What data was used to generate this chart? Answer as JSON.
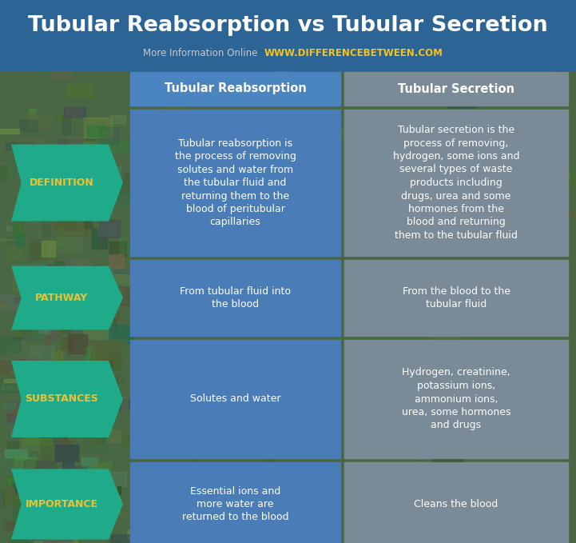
{
  "title": "Tubular Reabsorption vs Tubular Secretion",
  "subtitle_plain": "More Information Online",
  "subtitle_url": "WWW.DIFFERENCEBETWEEN.COM",
  "col1_header": "Tubular Reabsorption",
  "col2_header": "Tubular Secretion",
  "rows": [
    {
      "label": "DEFINITION",
      "col1": "Tubular reabsorption is\nthe process of removing\nsolutes and water from\nthe tubular fluid and\nreturning them to the\nblood of peritubular\ncapillaries",
      "col2": "Tubular secretion is the\nprocess of removing,\nhydrogen, some ions and\nseveral types of waste\nproducts including\ndrugs, urea and some\nhormones from the\nblood and returning\nthem to the tubular fluid"
    },
    {
      "label": "PATHWAY",
      "col1": "From tubular fluid into\nthe blood",
      "col2": "From the blood to the\ntubular fluid"
    },
    {
      "label": "SUBSTANCES",
      "col1": "Solutes and water",
      "col2": "Hydrogen, creatinine,\npotassium ions,\nammonium ions,\nurea, some hormones\nand drugs"
    },
    {
      "label": "IMPORTANCE",
      "col1": "Essential ions and\nmore water are\nreturned to the blood",
      "col2": "Cleans the blood"
    }
  ],
  "title_color": "#ffffff",
  "title_bg_color": "#2c6496",
  "subtitle_plain_color": "#c8c8c8",
  "subtitle_url_color": "#f5c518",
  "header1_bg_color": "#4a85c0",
  "header2_bg_color": "#7a8a96",
  "header_text_color": "#ffffff",
  "label_bg_color": "#1faa8a",
  "label_text_color": "#f0c030",
  "col1_bg_color": "#4a7db8",
  "col1_text_color": "#ffffff",
  "col2_bg_color": "#7a8a96",
  "col2_text_color": "#ffffff",
  "nature_bg_colors": [
    "#4a6640",
    "#3d5c38",
    "#5a7a50",
    "#486045"
  ],
  "fig_width": 7.21,
  "fig_height": 6.79,
  "dpi": 100
}
